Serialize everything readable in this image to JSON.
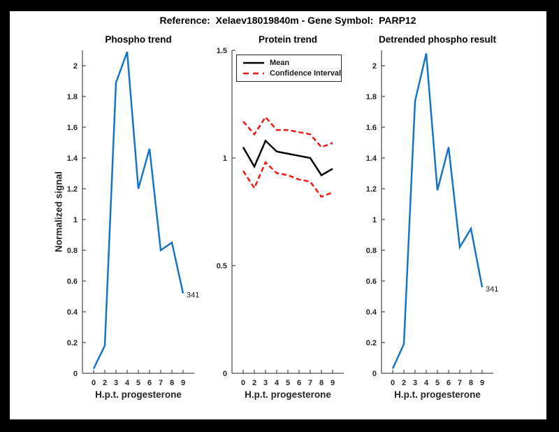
{
  "figure": {
    "title": "Reference:  Xelaev18019840m - Gene Symbol:  PARP12"
  },
  "colors": {
    "line_blue": "#1575c3",
    "ci_red": "#f11717",
    "mean_black": "#000000",
    "axis": "#262626"
  },
  "chart_data": [
    {
      "type": "line",
      "title": "Phospho trend",
      "xlabel": "H.p.t. progesterone",
      "ylabel": "Normalized signal",
      "x_tick_labels": [
        "0",
        "2",
        "3",
        "4",
        "5",
        "6",
        "7",
        "8",
        "9"
      ],
      "ylim": [
        0,
        2.1
      ],
      "ytick_values": [
        0,
        0.2,
        0.4,
        0.6,
        0.8,
        1,
        1.2,
        1.4,
        1.6,
        1.8,
        2
      ],
      "ytick_labels": [
        "0",
        "0.2",
        "0.4",
        "0.6",
        "0.8",
        "1",
        "1.2",
        "1.4",
        "1.6",
        "1.8",
        "2"
      ],
      "grid": false,
      "series": [
        {
          "name": "phospho",
          "color": "#1575c3",
          "dashed": false,
          "values": [
            0.03,
            0.18,
            1.89,
            2.09,
            1.2,
            1.46,
            0.8,
            0.85,
            0.52
          ]
        }
      ],
      "annotation": {
        "text": "341",
        "index": 8,
        "value": 0.52
      }
    },
    {
      "type": "line",
      "title": "Protein trend",
      "xlabel": "H.p.t. progesterone",
      "ylabel": "",
      "x_tick_labels": [
        "0",
        "2",
        "3",
        "4",
        "5",
        "6",
        "7",
        "8",
        "9"
      ],
      "ylim": [
        0,
        1.5
      ],
      "ytick_values": [
        0,
        0.5,
        1,
        1.5
      ],
      "ytick_labels": [
        "0",
        "0.5",
        "1",
        "1.5"
      ],
      "grid": false,
      "legend_position": "top-left-inside",
      "legend": [
        {
          "label": "Mean",
          "color": "#000000",
          "style": "solid"
        },
        {
          "label": "Confidence Interval",
          "color": "#f11717",
          "style": "dashed"
        }
      ],
      "series": [
        {
          "name": "mean",
          "color": "#000000",
          "dashed": false,
          "values": [
            1.05,
            0.96,
            1.08,
            1.03,
            1.02,
            1.01,
            1.0,
            0.92,
            0.95
          ]
        },
        {
          "name": "ci-upper",
          "color": "#f11717",
          "dashed": true,
          "values": [
            1.17,
            1.11,
            1.19,
            1.13,
            1.13,
            1.12,
            1.11,
            1.05,
            1.07
          ]
        },
        {
          "name": "ci-lower",
          "color": "#f11717",
          "dashed": true,
          "values": [
            0.94,
            0.86,
            0.98,
            0.93,
            0.92,
            0.9,
            0.89,
            0.82,
            0.84
          ]
        }
      ]
    },
    {
      "type": "line",
      "title": "Detrended phospho result",
      "xlabel": "H.p.t. progesterone",
      "ylabel": "",
      "x_tick_labels": [
        "0",
        "2",
        "3",
        "4",
        "5",
        "6",
        "7",
        "8",
        "9"
      ],
      "ylim": [
        0,
        2.1
      ],
      "ytick_values": [
        0,
        0.2,
        0.4,
        0.6,
        0.8,
        1,
        1.2,
        1.4,
        1.6,
        1.8,
        2
      ],
      "ytick_labels": [
        "0",
        "0.2",
        "0.4",
        "0.6",
        "0.8",
        "1",
        "1.2",
        "1.4",
        "1.6",
        "1.8",
        "2"
      ],
      "grid": false,
      "series": [
        {
          "name": "detrended",
          "color": "#1575c3",
          "dashed": false,
          "values": [
            0.03,
            0.19,
            1.77,
            2.08,
            1.19,
            1.47,
            0.82,
            0.94,
            0.56
          ]
        }
      ],
      "annotation": {
        "text": "341",
        "index": 8,
        "value": 0.56
      }
    }
  ]
}
